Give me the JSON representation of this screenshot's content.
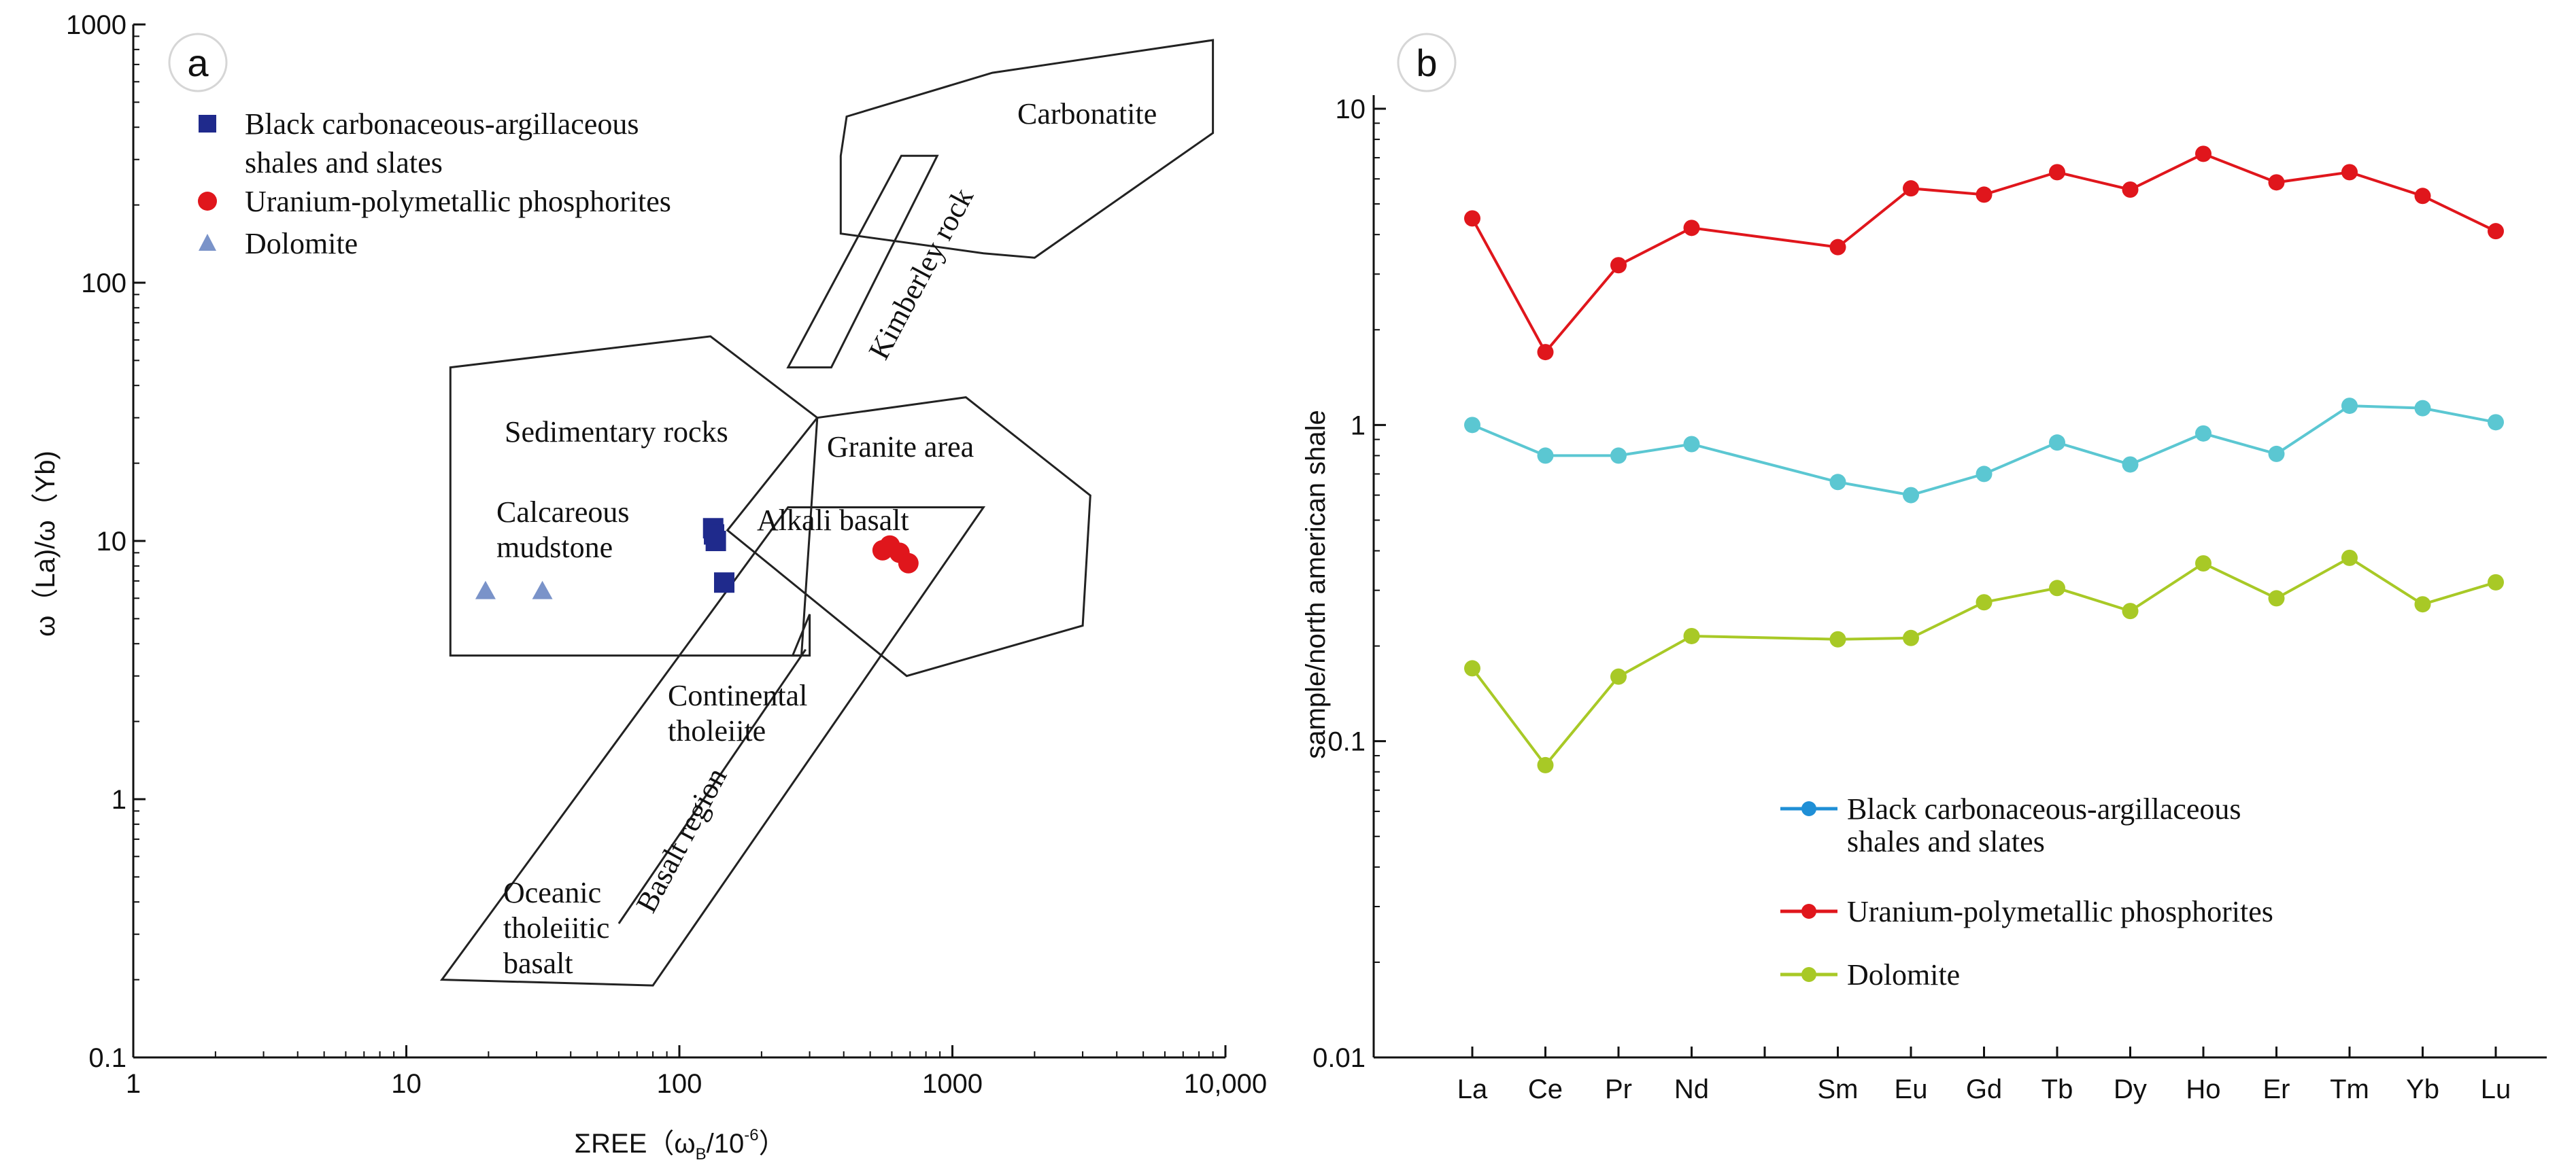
{
  "chart_data": [
    {
      "type": "scatter",
      "panel_label": "a",
      "xlabel": "ΣREE（ω",
      "xlabel_sub": "B",
      "xlabel_end": "/10",
      "xlabel_sup": "-6",
      "xlabel_close": "）",
      "ylabel": "ω（La)/ω（Yb)",
      "xscale": "log",
      "yscale": "log",
      "xlim": [
        1,
        10000
      ],
      "ylim": [
        0.1,
        1000
      ],
      "xticks": [
        1,
        10,
        100,
        1000,
        10000
      ],
      "xtick_labels": [
        "1",
        "10",
        "100",
        "1000",
        "10,000"
      ],
      "yticks": [
        0.1,
        1,
        10,
        100,
        1000
      ],
      "ytick_labels": [
        "0.1",
        "1",
        "10",
        "100",
        "1000"
      ],
      "series": [
        {
          "name": "Black carbonaceous-argillaceous",
          "name_line2": "shales and slates",
          "marker": "square",
          "color": "#1f2a8c",
          "points": [
            [
              133,
              11.2
            ],
            [
              134,
              10.6
            ],
            [
              136,
              10.0
            ],
            [
              146,
              6.9
            ]
          ]
        },
        {
          "name": "Uranium-polymetallic phosphorites",
          "marker": "circle",
          "color": "#e0161c",
          "points": [
            [
              555,
              9.2
            ],
            [
              590,
              9.6
            ],
            [
              640,
              9.0
            ],
            [
              690,
              8.2
            ]
          ]
        },
        {
          "name": "Dolomite",
          "marker": "triangle",
          "color": "#7a93c9",
          "points": [
            [
              19.5,
              6.4
            ],
            [
              31.5,
              6.4
            ]
          ]
        }
      ],
      "regions": [
        {
          "name": "Carbonatite",
          "points": [
            [
              410,
              440
            ],
            [
              1400,
              650
            ],
            [
              9000,
              870
            ],
            [
              9000,
              380
            ],
            [
              2000,
              125
            ],
            [
              1300,
              130
            ],
            [
              390,
              155
            ],
            [
              390,
              310
            ]
          ]
        },
        {
          "name": "Kimberley rock",
          "points": [
            [
              650,
              310
            ],
            [
              880,
              310
            ],
            [
              360,
              47
            ],
            [
              250,
              47
            ]
          ]
        },
        {
          "name": "Sedimentary rocks",
          "points": [
            [
              14.5,
              47
            ],
            [
              130,
              62
            ],
            [
              320,
              30
            ],
            [
              280,
              3.6
            ],
            [
              14.5,
              3.6
            ]
          ]
        },
        {
          "name": "Granite area",
          "points": [
            [
              320,
              30
            ],
            [
              1120,
              36
            ],
            [
              3200,
              15
            ],
            [
              3000,
              4.7
            ],
            [
              680,
              3.0
            ],
            [
              150,
              11
            ]
          ]
        },
        {
          "name": "Alkali basalt",
          "points": [
            [
              250,
              13.5
            ],
            [
              1300,
              13.5
            ],
            [
              80,
              0.19
            ],
            [
              13.5,
              0.2
            ]
          ]
        },
        {
          "name": "Continental tholeiite",
          "points": [
            [
              300,
              5.2
            ],
            [
              300,
              3.6
            ],
            [
              260,
              3.6
            ]
          ]
        },
        {
          "name": "Oceanic tholeiitic basalt",
          "points": [
            [
              290,
              3.8
            ],
            [
              60,
              0.33
            ]
          ]
        }
      ],
      "region_labels": {
        "carbonatite": "Carbonatite",
        "kimberley": "Kimberley rock",
        "sedimentary": "Sedimentary rocks",
        "granite": "Granite area",
        "calcareous1": "Calcareous",
        "calcareous2": "mudstone",
        "alkali": "Alkali basalt",
        "continental1": "Continental",
        "continental2": "tholeiite",
        "basalt_region": "Basalt region",
        "oceanic1": "Oceanic",
        "oceanic2": "tholeiitic",
        "oceanic3": "basalt"
      }
    },
    {
      "type": "line",
      "panel_label": "b",
      "ylabel": "sample/north american shale",
      "yscale": "log",
      "ylim": [
        0.01,
        10
      ],
      "yticks": [
        0.01,
        0.1,
        1,
        10
      ],
      "ytick_labels": [
        "0.01",
        "0.1",
        "1",
        "10"
      ],
      "categories": [
        "La",
        "Ce",
        "Pr",
        "Nd",
        "Sm",
        "Eu",
        "Gd",
        "Tb",
        "Dy",
        "Ho",
        "Er",
        "Tm",
        "Yb",
        "Lu"
      ],
      "category_slots": [
        0,
        1,
        2,
        3,
        5,
        6,
        7,
        8,
        9,
        10,
        11,
        12,
        13,
        14
      ],
      "series": [
        {
          "name": "Black carbonaceous-argillaceous",
          "name_line2": "shales and slates",
          "color": "#5bc7d2",
          "legend_color": "#1f8fd6",
          "values": [
            1.0,
            0.8,
            0.8,
            0.87,
            0.66,
            0.6,
            0.7,
            0.88,
            0.75,
            0.94,
            0.81,
            1.15,
            1.13,
            1.02
          ]
        },
        {
          "name": "Uranium-polymetallic phosphorites",
          "color": "#e0161c",
          "legend_color": "#e0161c",
          "values": [
            4.5,
            1.7,
            3.2,
            4.2,
            3.65,
            5.6,
            5.35,
            6.3,
            5.55,
            7.2,
            5.85,
            6.3,
            5.3,
            4.1
          ]
        },
        {
          "name": "Dolomite",
          "color": "#a8c926",
          "legend_color": "#a8c926",
          "values": [
            0.17,
            0.084,
            0.16,
            0.215,
            0.21,
            0.212,
            0.275,
            0.305,
            0.258,
            0.365,
            0.283,
            0.38,
            0.271,
            0.318
          ]
        }
      ]
    }
  ]
}
